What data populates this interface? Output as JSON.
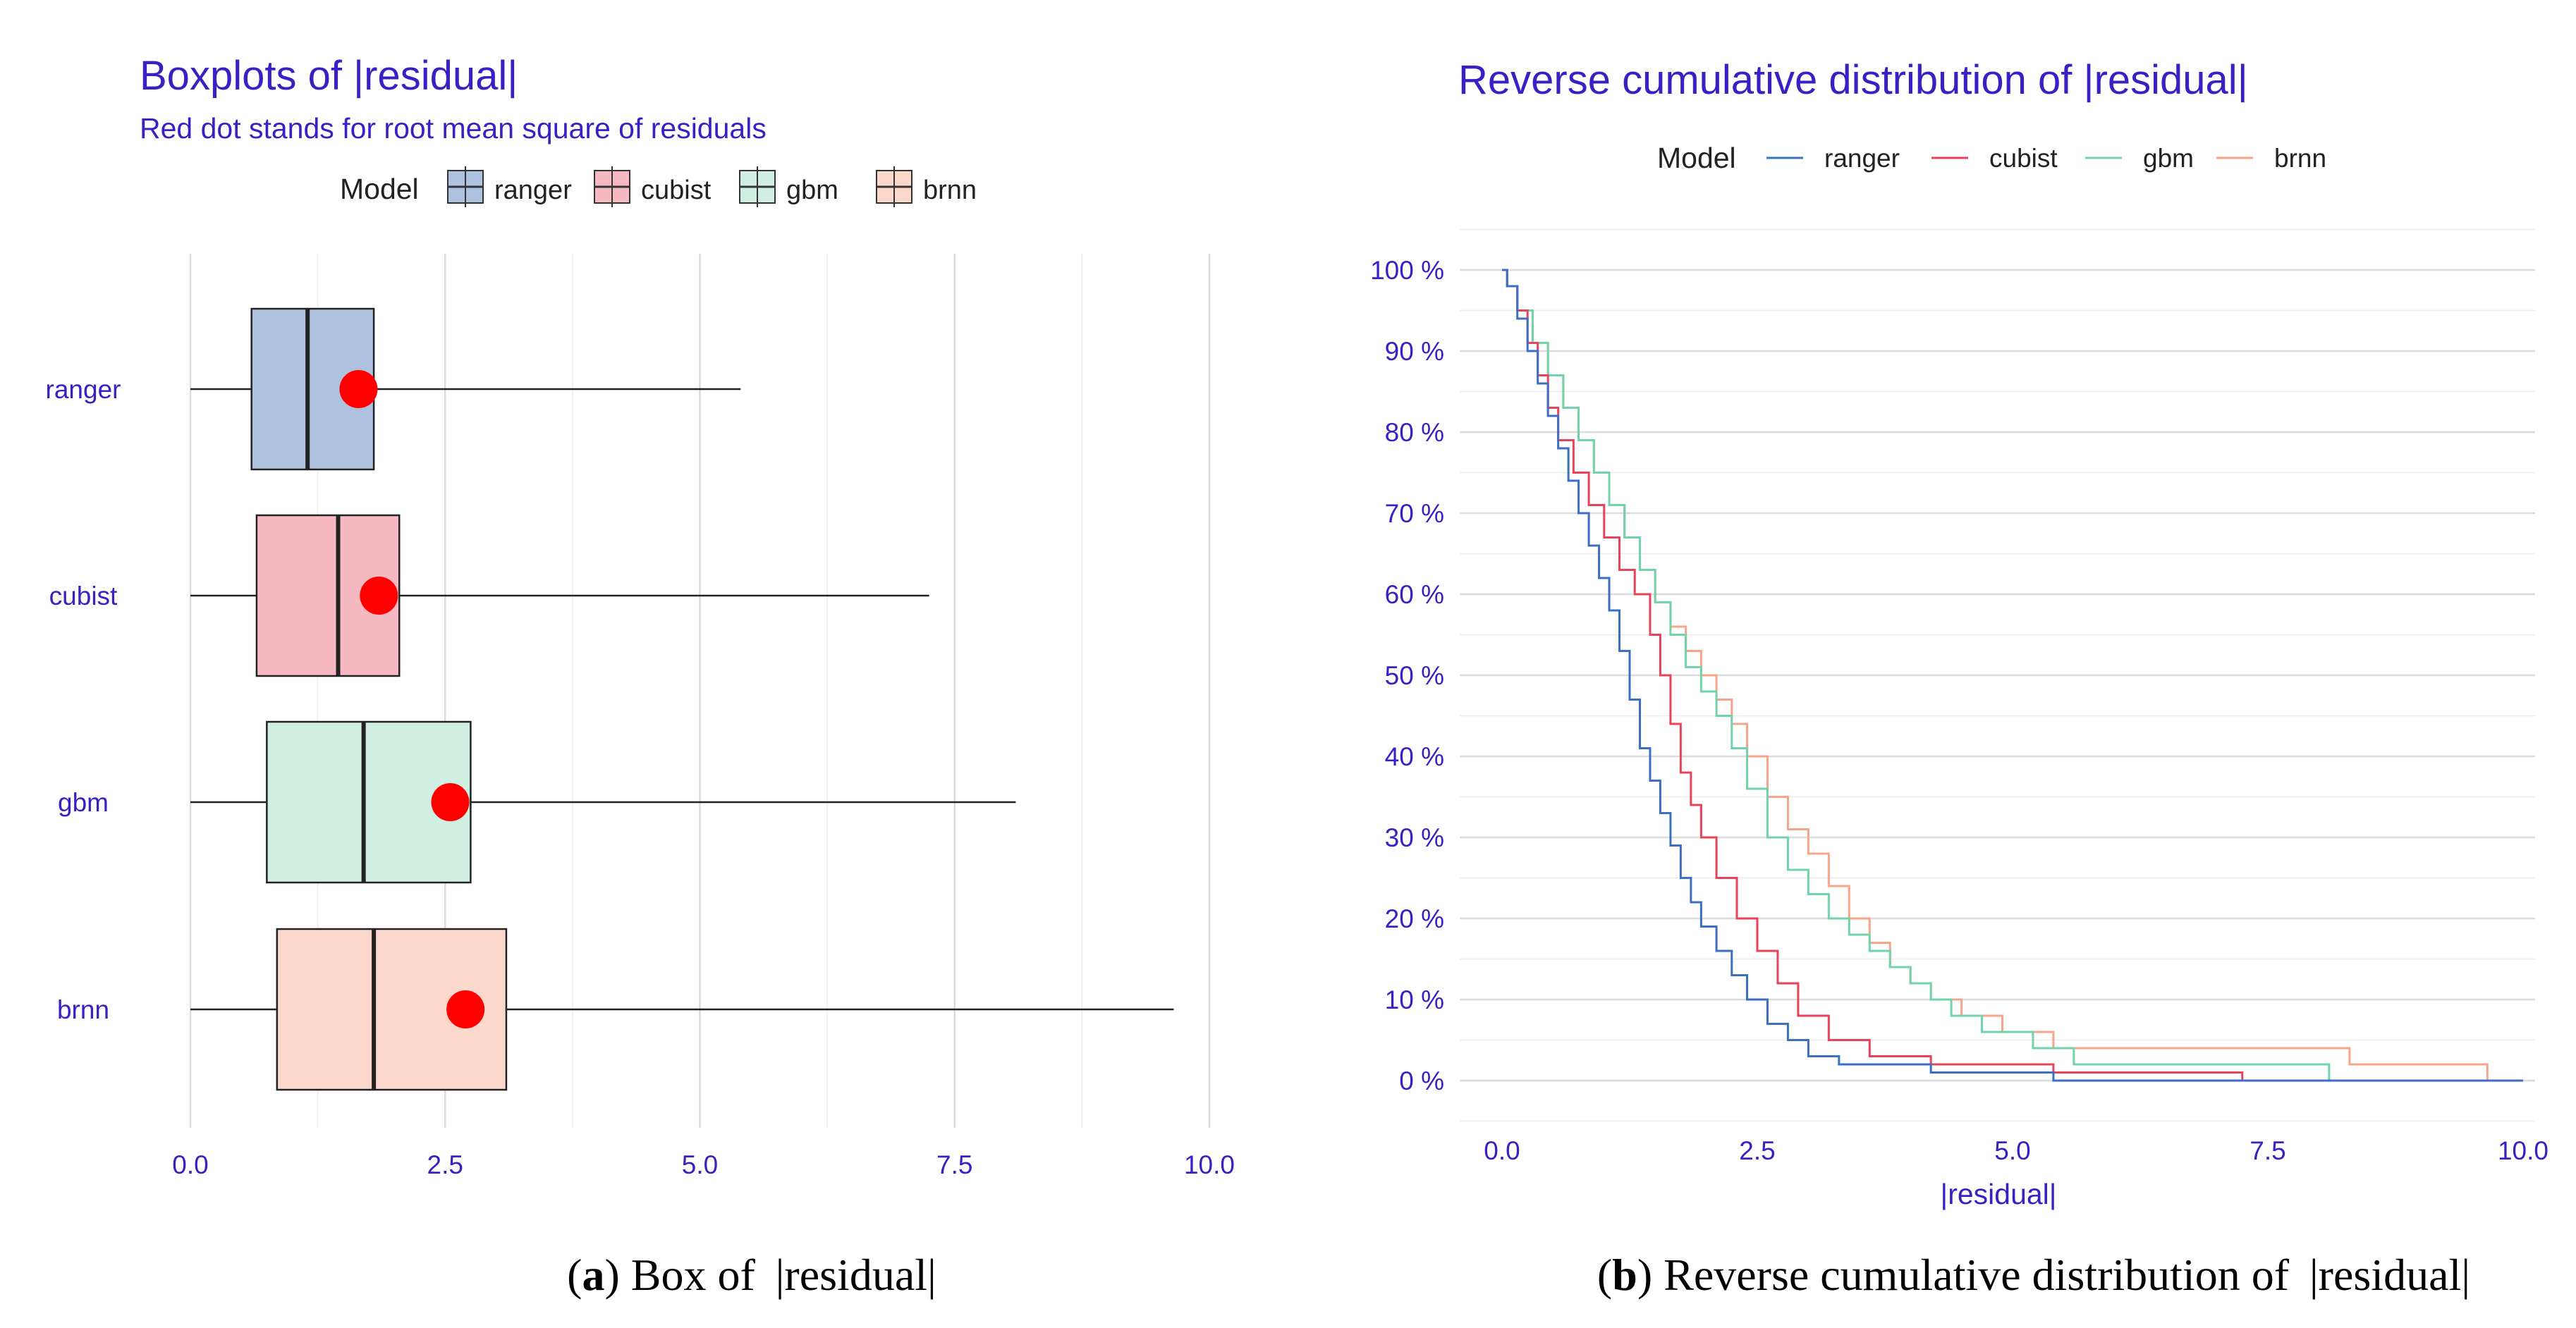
{
  "chart_data": [
    {
      "type": "box",
      "title": "Boxplots of |residual|",
      "subtitle": "Red dot stands for root mean square of residuals",
      "legend": {
        "title": "Model",
        "position": "top"
      },
      "categories": [
        "ranger",
        "cubist",
        "gbm",
        "brnn"
      ],
      "colors": [
        "#aec2e0",
        "#f6b8c1",
        "#d0efe2",
        "#fcd7cc"
      ],
      "boxes": [
        {
          "model": "ranger",
          "min": 0.0,
          "q1": 0.6,
          "median": 1.15,
          "q3": 1.8,
          "max": 5.4,
          "rmse": 1.65
        },
        {
          "model": "cubist",
          "min": 0.0,
          "q1": 0.65,
          "median": 1.45,
          "q3": 2.05,
          "max": 7.25,
          "rmse": 1.85
        },
        {
          "model": "gbm",
          "min": 0.0,
          "q1": 0.75,
          "median": 1.7,
          "q3": 2.75,
          "max": 8.1,
          "rmse": 2.55
        },
        {
          "model": "brnn",
          "min": 0.0,
          "q1": 0.85,
          "median": 1.8,
          "q3": 3.1,
          "max": 9.65,
          "rmse": 2.7
        }
      ],
      "xlim": [
        0,
        10
      ],
      "xticks": [
        "0.0",
        "2.5",
        "5.0",
        "7.5",
        "10.0"
      ],
      "xlabel": "",
      "ylabel": "",
      "rmse_color": "#ff0000",
      "caption_bold": "a",
      "caption_rest": ") Box of  |residual|"
    },
    {
      "type": "line",
      "step": true,
      "title": "Reverse cumulative distribution of |residual|",
      "legend": {
        "title": "Model",
        "position": "top"
      },
      "xlabel": "|residual|",
      "ylabel": "",
      "xlim": [
        0,
        10
      ],
      "ylim": [
        0,
        100
      ],
      "xticks": [
        "0.0",
        "2.5",
        "5.0",
        "7.5",
        "10.0"
      ],
      "yticks": [
        "0 %",
        "10 %",
        "20 %",
        "30 %",
        "40 %",
        "50 %",
        "60 %",
        "70 %",
        "80 %",
        "90 %",
        "100 %"
      ],
      "series": [
        {
          "name": "ranger",
          "color": "#3b6fc4",
          "x": [
            0,
            0.05,
            0.15,
            0.25,
            0.35,
            0.45,
            0.55,
            0.65,
            0.75,
            0.85,
            0.95,
            1.05,
            1.15,
            1.25,
            1.35,
            1.45,
            1.55,
            1.65,
            1.75,
            1.85,
            1.95,
            2.1,
            2.25,
            2.4,
            2.6,
            2.8,
            3.0,
            3.3,
            4.2,
            5.4
          ],
          "y": [
            100,
            98,
            94,
            90,
            86,
            82,
            78,
            74,
            70,
            66,
            62,
            58,
            53,
            47,
            41,
            37,
            33,
            29,
            25,
            22,
            19,
            16,
            13,
            10,
            7,
            5,
            3,
            2,
            1,
            0
          ]
        },
        {
          "name": "cubist",
          "color": "#e8435a",
          "x": [
            0,
            0.05,
            0.15,
            0.25,
            0.35,
            0.45,
            0.55,
            0.7,
            0.85,
            1.0,
            1.15,
            1.3,
            1.45,
            1.55,
            1.65,
            1.75,
            1.85,
            1.95,
            2.1,
            2.3,
            2.5,
            2.7,
            2.9,
            3.2,
            3.6,
            4.2,
            5.4,
            7.25
          ],
          "y": [
            100,
            98,
            95,
            91,
            87,
            83,
            79,
            75,
            71,
            67,
            63,
            60,
            55,
            50,
            44,
            38,
            34,
            30,
            25,
            20,
            16,
            12,
            8,
            5,
            3,
            2,
            1,
            0
          ]
        },
        {
          "name": "gbm",
          "color": "#72d3a9",
          "x": [
            0,
            0.05,
            0.15,
            0.3,
            0.45,
            0.6,
            0.75,
            0.9,
            1.05,
            1.2,
            1.35,
            1.5,
            1.65,
            1.8,
            1.95,
            2.1,
            2.25,
            2.4,
            2.6,
            2.8,
            3.0,
            3.2,
            3.4,
            3.6,
            3.8,
            4.0,
            4.2,
            4.4,
            4.7,
            5.2,
            5.6,
            8.1
          ],
          "y": [
            100,
            98,
            95,
            91,
            87,
            83,
            79,
            75,
            71,
            67,
            63,
            59,
            55,
            51,
            48,
            45,
            41,
            36,
            30,
            26,
            23,
            20,
            18,
            16,
            14,
            12,
            10,
            8,
            6,
            4,
            2,
            0
          ]
        },
        {
          "name": "brnn",
          "color": "#f7a48a",
          "x": [
            0,
            0.05,
            0.15,
            0.3,
            0.45,
            0.6,
            0.75,
            0.9,
            1.05,
            1.2,
            1.35,
            1.5,
            1.65,
            1.8,
            1.95,
            2.1,
            2.25,
            2.4,
            2.6,
            2.8,
            3.0,
            3.2,
            3.4,
            3.6,
            3.8,
            4.0,
            4.2,
            4.5,
            4.9,
            5.4,
            8.3,
            9.65
          ],
          "y": [
            100,
            98,
            95,
            91,
            87,
            83,
            79,
            75,
            71,
            67,
            63,
            59,
            56,
            53,
            50,
            47,
            44,
            40,
            35,
            31,
            28,
            24,
            20,
            17,
            14,
            12,
            10,
            8,
            6,
            4,
            2,
            0
          ]
        }
      ],
      "caption_bold": "b",
      "caption_rest": ") Reverse cumulative distribution of  |residual|"
    }
  ]
}
